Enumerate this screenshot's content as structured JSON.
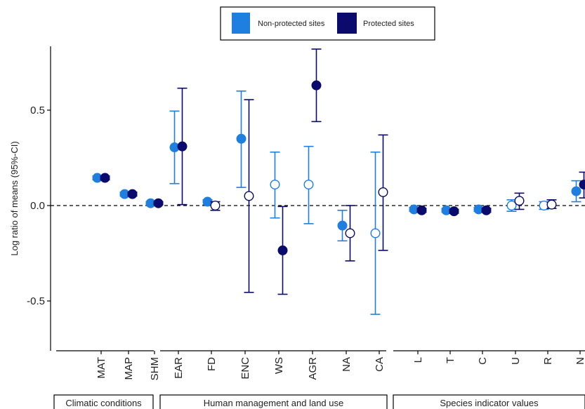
{
  "chart_data": {
    "type": "scatter",
    "ylabel": "Log ratio of means (95%-CI)",
    "ylim": [
      -0.68,
      0.92
    ],
    "yticks": [
      -0.5,
      0.0,
      0.5
    ],
    "ytick_labels": [
      "-0.5",
      "0.0",
      "0.5"
    ],
    "reference_line": 0,
    "grid": false,
    "legend_position": "top-center",
    "colors": {
      "non_protected": "#1e7fe0",
      "protected": "#0b0b6e"
    },
    "series": [
      {
        "name": "Non-protected sites",
        "key": "non_protected"
      },
      {
        "name": "Protected sites",
        "key": "protected"
      }
    ],
    "groups": [
      {
        "label": "Climatic conditions",
        "categories": [
          "MAT",
          "MAP",
          "SHM"
        ]
      },
      {
        "label": "Human management and land use",
        "categories": [
          "EAR",
          "FD",
          "ENC",
          "WS",
          "AGR",
          "NA",
          "CA"
        ]
      },
      {
        "label": "Species indicator values",
        "categories": [
          "L",
          "T",
          "C",
          "U",
          "R",
          "N"
        ]
      }
    ],
    "points": [
      {
        "category": "MAT",
        "series": "non_protected",
        "y": 0.145,
        "low": 0.135,
        "high": 0.155,
        "filled": true
      },
      {
        "category": "MAT",
        "series": "protected",
        "y": 0.145,
        "low": 0.135,
        "high": 0.155,
        "filled": true
      },
      {
        "category": "MAP",
        "series": "non_protected",
        "y": 0.06,
        "low": 0.05,
        "high": 0.07,
        "filled": true
      },
      {
        "category": "MAP",
        "series": "protected",
        "y": 0.06,
        "low": 0.05,
        "high": 0.07,
        "filled": true
      },
      {
        "category": "SHM",
        "series": "non_protected",
        "y": 0.012,
        "low": 0.004,
        "high": 0.02,
        "filled": true
      },
      {
        "category": "SHM",
        "series": "protected",
        "y": 0.012,
        "low": 0.004,
        "high": 0.02,
        "filled": true
      },
      {
        "category": "EAR",
        "series": "non_protected",
        "y": 0.305,
        "low": 0.115,
        "high": 0.495,
        "filled": true
      },
      {
        "category": "EAR",
        "series": "protected",
        "y": 0.31,
        "low": 0.005,
        "high": 0.615,
        "filled": true
      },
      {
        "category": "FD",
        "series": "non_protected",
        "y": 0.02,
        "low": 0.005,
        "high": 0.03,
        "filled": true
      },
      {
        "category": "FD",
        "series": "protected",
        "y": 0.0,
        "low": -0.025,
        "high": 0.02,
        "filled": false
      },
      {
        "category": "ENC",
        "series": "non_protected",
        "y": 0.35,
        "low": 0.095,
        "high": 0.6,
        "filled": true
      },
      {
        "category": "ENC",
        "series": "protected",
        "y": 0.05,
        "low": -0.455,
        "high": 0.555,
        "filled": false
      },
      {
        "category": "WS",
        "series": "non_protected",
        "y": 0.11,
        "low": -0.065,
        "high": 0.28,
        "filled": false
      },
      {
        "category": "WS",
        "series": "protected",
        "y": -0.235,
        "low": -0.465,
        "high": -0.005,
        "filled": true
      },
      {
        "category": "AGR",
        "series": "non_protected",
        "y": 0.11,
        "low": -0.095,
        "high": 0.31,
        "filled": false
      },
      {
        "category": "AGR",
        "series": "protected",
        "y": 0.63,
        "low": 0.44,
        "high": 0.82,
        "filled": true
      },
      {
        "category": "NA",
        "series": "non_protected",
        "y": -0.105,
        "low": -0.185,
        "high": -0.025,
        "filled": true
      },
      {
        "category": "NA",
        "series": "protected",
        "y": -0.145,
        "low": -0.29,
        "high": 0.0,
        "filled": false
      },
      {
        "category": "CA",
        "series": "non_protected",
        "y": -0.145,
        "low": -0.57,
        "high": 0.28,
        "filled": false
      },
      {
        "category": "CA",
        "series": "protected",
        "y": 0.07,
        "low": -0.235,
        "high": 0.37,
        "filled": false
      },
      {
        "category": "L",
        "series": "non_protected",
        "y": -0.02,
        "low": -0.03,
        "high": -0.01,
        "filled": true
      },
      {
        "category": "L",
        "series": "protected",
        "y": -0.025,
        "low": -0.035,
        "high": -0.015,
        "filled": true
      },
      {
        "category": "T",
        "series": "non_protected",
        "y": -0.025,
        "low": -0.035,
        "high": -0.015,
        "filled": true
      },
      {
        "category": "T",
        "series": "protected",
        "y": -0.03,
        "low": -0.04,
        "high": -0.02,
        "filled": true
      },
      {
        "category": "C",
        "series": "non_protected",
        "y": -0.02,
        "low": -0.03,
        "high": -0.01,
        "filled": true
      },
      {
        "category": "C",
        "series": "protected",
        "y": -0.025,
        "low": -0.035,
        "high": -0.015,
        "filled": true
      },
      {
        "category": "U",
        "series": "non_protected",
        "y": 0.0,
        "low": -0.03,
        "high": 0.03,
        "filled": false
      },
      {
        "category": "U",
        "series": "protected",
        "y": 0.025,
        "low": -0.02,
        "high": 0.065,
        "filled": false
      },
      {
        "category": "R",
        "series": "non_protected",
        "y": 0.0,
        "low": -0.02,
        "high": 0.02,
        "filled": false
      },
      {
        "category": "R",
        "series": "protected",
        "y": 0.005,
        "low": -0.015,
        "high": 0.03,
        "filled": false
      },
      {
        "category": "N",
        "series": "non_protected",
        "y": 0.075,
        "low": 0.02,
        "high": 0.13,
        "filled": true
      },
      {
        "category": "N",
        "series": "protected",
        "y": 0.11,
        "low": 0.04,
        "high": 0.175,
        "filled": true
      }
    ]
  }
}
